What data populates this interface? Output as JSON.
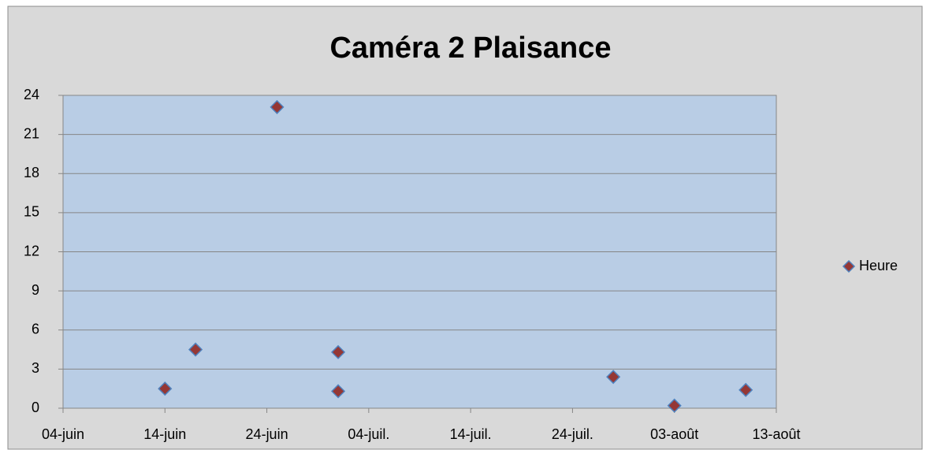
{
  "chart_data": {
    "type": "scatter",
    "title": "Caméra 2 Plaisance",
    "series": [
      {
        "name": "Heure",
        "color": "#953735",
        "edge_color": "#4f81bd",
        "x": [
          165,
          168,
          176,
          182,
          182,
          209,
          215,
          222
        ],
        "values": [
          1.5,
          4.5,
          23.1,
          4.3,
          1.3,
          2.4,
          0.2,
          1.4
        ]
      }
    ],
    "xlim": [
      155,
      225
    ],
    "xticks": [
      {
        "value": 155,
        "label": "04-juin"
      },
      {
        "value": 165,
        "label": "14-juin"
      },
      {
        "value": 175,
        "label": "24-juin"
      },
      {
        "value": 185,
        "label": "04-juil."
      },
      {
        "value": 195,
        "label": "14-juil."
      },
      {
        "value": 205,
        "label": "24-juil."
      },
      {
        "value": 215,
        "label": "03-août"
      },
      {
        "value": 225,
        "label": "13-août"
      }
    ],
    "ylim": [
      0,
      24
    ],
    "yticks": [
      0,
      3,
      6,
      9,
      12,
      15,
      18,
      21,
      24
    ],
    "grid": true,
    "legend": "right"
  }
}
